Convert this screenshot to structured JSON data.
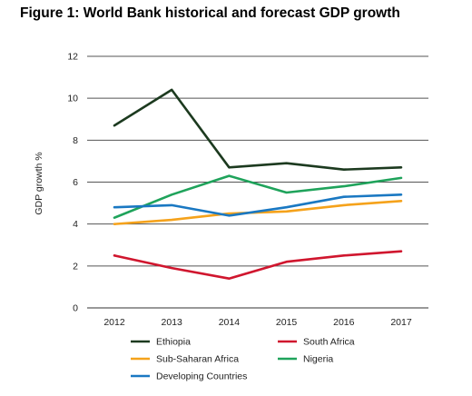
{
  "chart_data": {
    "type": "line",
    "title": "Figure 1: World Bank historical and forecast GDP growth",
    "xlabel": "",
    "ylabel": "GDP growth %",
    "x": [
      "2012",
      "2013",
      "2014",
      "2015",
      "2016",
      "2017"
    ],
    "ylim": [
      0,
      12
    ],
    "yticks": [
      0,
      2,
      4,
      6,
      8,
      10,
      12
    ],
    "grid": "horizontal",
    "legend_position": "bottom",
    "series": [
      {
        "name": "Ethiopia",
        "color": "#1c3a1f",
        "values": [
          8.7,
          10.4,
          6.7,
          6.9,
          6.6,
          6.7
        ]
      },
      {
        "name": "South Africa",
        "color": "#d0162e",
        "values": [
          2.5,
          1.9,
          1.4,
          2.2,
          2.5,
          2.7
        ]
      },
      {
        "name": "Sub-Saharan Africa",
        "color": "#f5a21b",
        "values": [
          4.0,
          4.2,
          4.5,
          4.6,
          4.9,
          5.1
        ]
      },
      {
        "name": "Nigeria",
        "color": "#1fa35b",
        "values": [
          4.3,
          5.4,
          6.3,
          5.5,
          5.8,
          6.2
        ]
      },
      {
        "name": "Developing Countries",
        "color": "#1a78c2",
        "values": [
          4.8,
          4.9,
          4.4,
          4.8,
          5.3,
          5.4
        ]
      }
    ]
  }
}
